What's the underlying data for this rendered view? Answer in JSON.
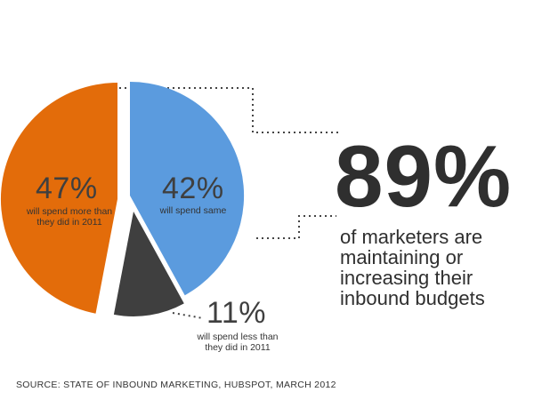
{
  "chart_data": {
    "type": "pie",
    "title": "",
    "slices": [
      {
        "value": 42,
        "label": "42%",
        "description": "will spend same",
        "color": "#5b9bde"
      },
      {
        "value": 11,
        "label": "11%",
        "description": "will spend less than they did in 2011",
        "color": "#3f3f3f"
      },
      {
        "value": 47,
        "label": "47%",
        "description": "will spend more than they did in 2011",
        "color": "#e36c0a"
      }
    ]
  },
  "highlight": {
    "number": "89%",
    "text": "of marketers are maintaining or increasing their inbound budgets"
  },
  "source": "SOURCE: STATE OF INBOUND MARKETING, HUBSPOT, MARCH 2012"
}
